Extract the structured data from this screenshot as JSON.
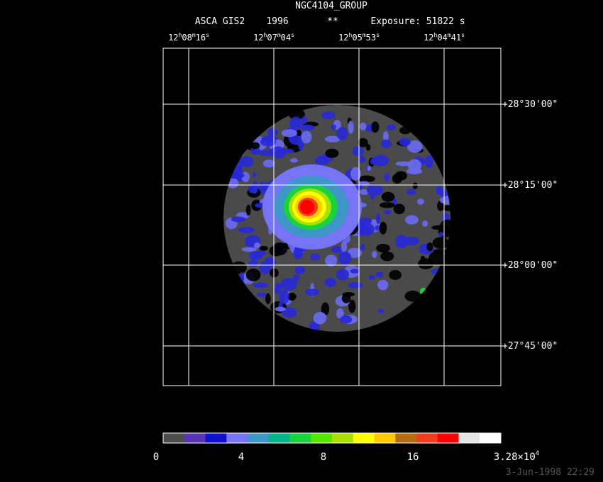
{
  "title": "NGC4104_GROUP",
  "subtitle": [
    "ASCA GIS2",
    "1996",
    "**",
    "Exposure: 51822 s"
  ],
  "ra_labels": [
    [
      "12",
      "h",
      "08",
      "m",
      "16",
      "s"
    ],
    [
      "12",
      "h",
      "07",
      "m",
      "04",
      "s"
    ],
    [
      "12",
      "h",
      "05",
      "m",
      "53",
      "s"
    ],
    [
      "12",
      "h",
      "04",
      "m",
      "41",
      "s"
    ]
  ],
  "dec_labels": [
    "+28°30'00\"",
    "+28°15'00\"",
    "+28°00'00\"",
    "+27°45'00\""
  ],
  "colorbar": {
    "colors": [
      "#4d4d4d",
      "#5a34b4",
      "#1010d0",
      "#7474f4",
      "#3c96c8",
      "#00b48c",
      "#18d43c",
      "#54e800",
      "#a8e000",
      "#ffff00",
      "#ffc800",
      "#b86c10",
      "#f03c1c",
      "#ff0000",
      "#e4e4e4",
      "#ffffff"
    ],
    "labels": [
      [
        "0"
      ],
      [
        "4"
      ],
      [
        "8"
      ],
      [
        "16"
      ],
      [
        "3.28×10",
        "4"
      ]
    ]
  },
  "timestamp": "3-Jun-1998 22:29"
}
